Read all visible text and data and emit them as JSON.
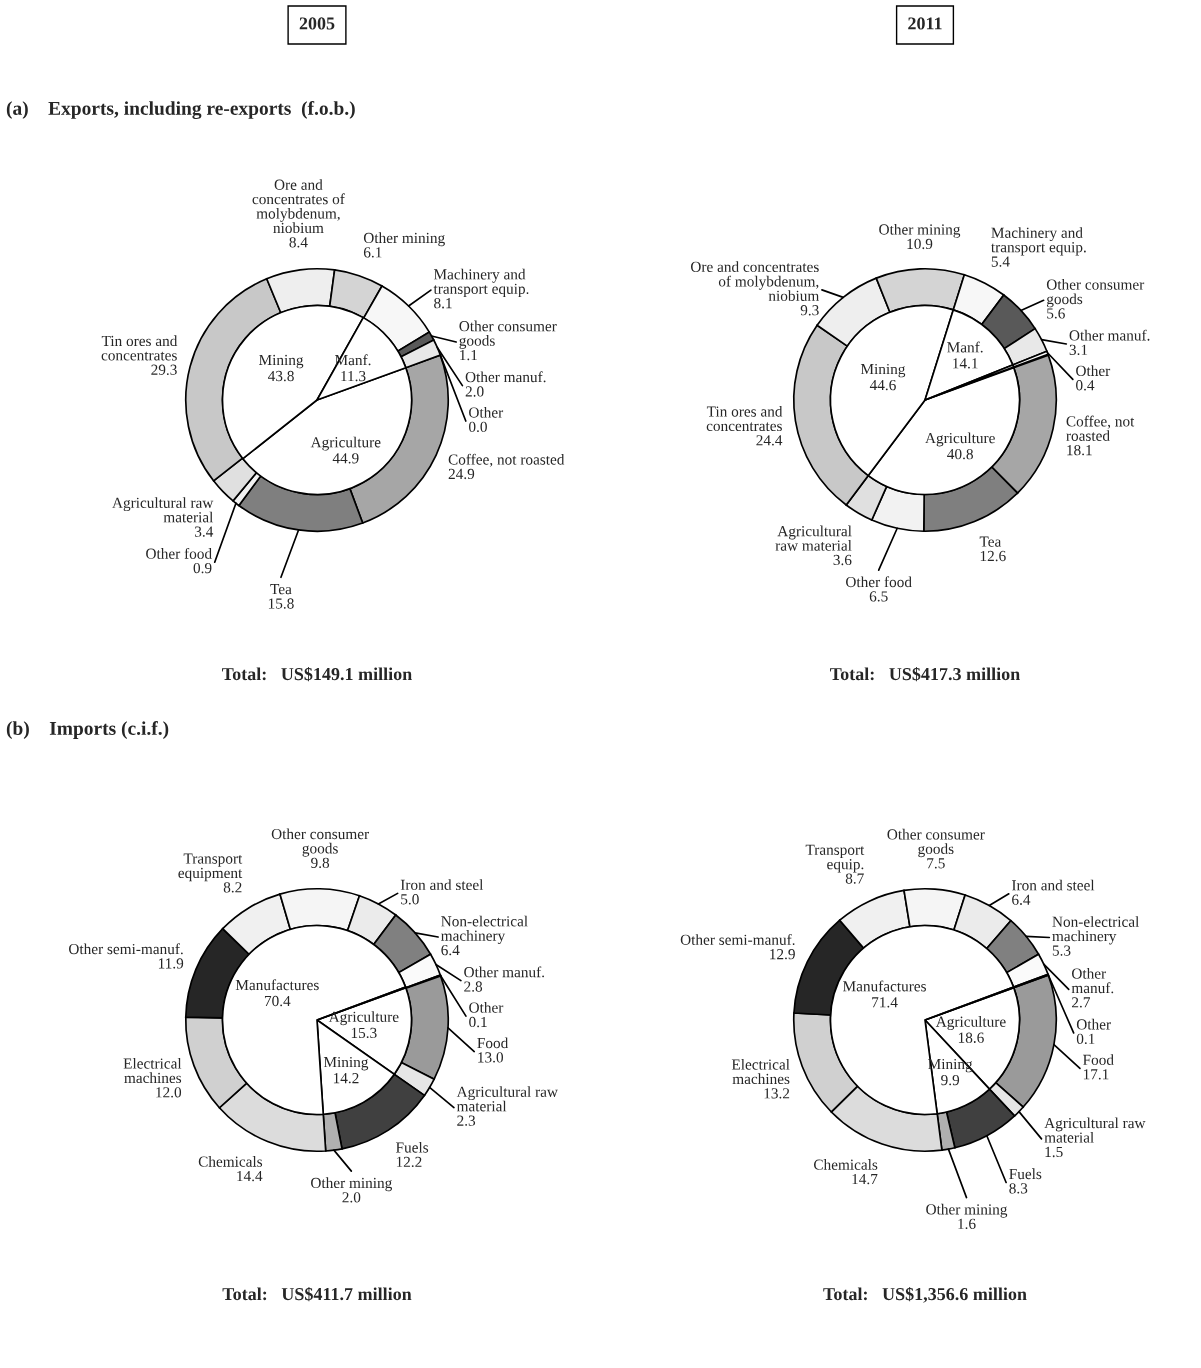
{
  "chart_data": [
    {
      "type": "donut",
      "title": "2005",
      "subtitle": "(a)    Exports, including re-exports  (f.o.b.)",
      "annotations": [
        "Total:   US$149.1 million"
      ],
      "categories": [
        "Coffee, not roasted",
        "Tea",
        "Other food",
        "Agricultural raw\nmaterial",
        "Tin ores and\nconcentrates",
        "Ore and\nconcentrates of\nmolybdenum,\nniobium",
        "Other mining",
        "Machinery and\ntransport equip.",
        "Other consumer\ngoods",
        "Other manuf.",
        "Other"
      ],
      "series": [
        {
          "values": [
            24.9,
            15.8,
            0.9,
            3.4,
            29.3,
            8.4,
            6.1,
            8.1,
            1.1,
            2.0,
            0.0
          ],
          "colors": [
            "#a6a6a6",
            "#7f7f7f",
            "#f2f2f2",
            "#e0e0e0",
            "#c8c8c8",
            "#eeeeee",
            "#d4d4d4",
            "#f7f7f7",
            "#595959",
            "#e8e8e8",
            "#ffffff"
          ],
          "value_labels": [
            "24.9",
            "15.8",
            "0.9",
            "3.4",
            "29.3",
            "8.4",
            "6.1",
            "8.1",
            "1.1",
            "2.0",
            "0.0"
          ]
        },
        {
          "values": [
            44.9,
            null,
            null,
            null,
            43.8,
            null,
            null,
            11.3,
            null,
            null,
            0.0
          ],
          "colors": [
            "#ffffff",
            "#ffffff",
            "#ffffff",
            "#ffffff",
            "#ffffff",
            "#ffffff",
            "#ffffff",
            "#ffffff",
            "#ffffff",
            "#ffffff",
            "#ffffff"
          ],
          "value_labels": [
            "Agriculture\n44.9",
            null,
            null,
            null,
            "Mining\n43.8",
            null,
            null,
            "Manf.\n11.3",
            null,
            null,
            null
          ]
        }
      ]
    },
    {
      "type": "donut",
      "title": "2011",
      "annotations": [
        "Total:   US$417.3 million"
      ],
      "categories": [
        "Coffee, not\nroasted",
        "Tea",
        "Other food",
        "Agricultural\nraw material",
        "Tin ores and\nconcentrates",
        "Ore and concentrates\nof molybdenum,\nniobium",
        "Other mining",
        "Machinery and\ntransport equip.",
        "Other consumer\ngoods",
        "Other manuf.",
        "Other"
      ],
      "series": [
        {
          "values": [
            18.1,
            12.6,
            6.5,
            3.6,
            24.4,
            9.3,
            10.9,
            5.4,
            5.6,
            3.1,
            0.4
          ],
          "colors": [
            "#a6a6a6",
            "#7f7f7f",
            "#f2f2f2",
            "#e0e0e0",
            "#c8c8c8",
            "#eeeeee",
            "#d4d4d4",
            "#f7f7f7",
            "#595959",
            "#e8e8e8",
            "#ffffff"
          ],
          "value_labels": [
            "18.1",
            "12.6",
            "6.5",
            "3.6",
            "24.4",
            "9.3",
            "10.9",
            "5.4",
            "5.6",
            "3.1",
            "0.4"
          ]
        },
        {
          "values": [
            40.8,
            null,
            null,
            null,
            44.6,
            null,
            null,
            14.1,
            null,
            null,
            0.4
          ],
          "colors": [
            "#ffffff",
            "#ffffff",
            "#ffffff",
            "#ffffff",
            "#ffffff",
            "#ffffff",
            "#ffffff",
            "#ffffff",
            "#ffffff",
            "#ffffff",
            "#ffffff"
          ],
          "value_labels": [
            "Agriculture\n40.8",
            null,
            null,
            null,
            "Mining\n44.6",
            null,
            null,
            "Manf.\n14.1",
            null,
            null,
            null
          ]
        }
      ]
    },
    {
      "type": "donut",
      "subtitle": "(b)    Imports (c.i.f.)",
      "annotations": [
        "Total:   US$411.7 million"
      ],
      "categories": [
        "Food",
        "Agricultural raw\nmaterial",
        "Fuels",
        "Other mining",
        "Chemicals",
        "Electrical\nmachines",
        "Other semi-manuf.",
        "Transport\nequipment",
        "Other consumer\ngoods",
        "Iron and steel",
        "Non-electrical\nmachinery",
        "Other manuf.",
        "Other"
      ],
      "series": [
        {
          "values": [
            13.0,
            2.3,
            12.2,
            2.0,
            14.4,
            12.0,
            11.9,
            8.2,
            9.8,
            5.0,
            6.4,
            2.8,
            0.1
          ],
          "colors": [
            "#9a9a9a",
            "#e6e6e6",
            "#404040",
            "#b0b0b0",
            "#dcdcdc",
            "#d0d0d0",
            "#262626",
            "#f0f0f0",
            "#f5f5f5",
            "#ebebeb",
            "#808080",
            "#fafafa",
            "#ffffff"
          ],
          "value_labels": [
            "13.0",
            "2.3",
            "12.2",
            "2.0",
            "14.4",
            "12.0",
            "11.9",
            "8.2",
            "9.8",
            "5.0",
            "6.4",
            "2.8",
            "0.1"
          ]
        },
        {
          "values": [
            15.3,
            null,
            14.2,
            null,
            70.4,
            null,
            null,
            null,
            null,
            null,
            null,
            null,
            0.1
          ],
          "colors": [
            "#ffffff",
            "#ffffff",
            "#ffffff",
            "#ffffff",
            "#ffffff",
            "#ffffff",
            "#ffffff",
            "#ffffff",
            "#ffffff",
            "#ffffff",
            "#ffffff",
            "#ffffff",
            "#ffffff"
          ],
          "value_labels": [
            "Agriculture\n15.3",
            null,
            "Mining\n14.2",
            null,
            "Manufactures\n70.4",
            null,
            null,
            null,
            null,
            null,
            null,
            null,
            null
          ]
        }
      ]
    },
    {
      "type": "donut",
      "annotations": [
        "Total:   US$1,356.6 million"
      ],
      "categories": [
        "Food",
        "Agricultural raw\nmaterial",
        "Fuels",
        "Other mining",
        "Chemicals",
        "Electrical\nmachines",
        "Other semi-manuf.",
        "Transport\nequip.",
        "Other consumer\ngoods",
        "Iron and steel",
        "Non-electrical\nmachinery",
        "Other\nmanuf.",
        "Other"
      ],
      "series": [
        {
          "values": [
            17.1,
            1.5,
            8.3,
            1.6,
            14.7,
            13.2,
            12.9,
            8.7,
            7.5,
            6.4,
            5.3,
            2.7,
            0.1
          ],
          "colors": [
            "#9a9a9a",
            "#e6e6e6",
            "#404040",
            "#b0b0b0",
            "#dcdcdc",
            "#d0d0d0",
            "#262626",
            "#f0f0f0",
            "#f5f5f5",
            "#ebebeb",
            "#808080",
            "#fafafa",
            "#ffffff"
          ],
          "value_labels": [
            "17.1",
            "1.5",
            "8.3",
            "1.6",
            "14.7",
            "13.2",
            "12.9",
            "8.7",
            "7.5",
            "6.4",
            "5.3",
            "2.7",
            "0.1"
          ]
        },
        {
          "values": [
            18.6,
            null,
            9.9,
            null,
            71.4,
            null,
            null,
            null,
            null,
            null,
            null,
            null,
            0.1
          ],
          "colors": [
            "#ffffff",
            "#ffffff",
            "#ffffff",
            "#ffffff",
            "#ffffff",
            "#ffffff",
            "#ffffff",
            "#ffffff",
            "#ffffff",
            "#ffffff",
            "#ffffff",
            "#ffffff",
            "#ffffff"
          ],
          "value_labels": [
            "Agriculture\n18.6",
            null,
            "Mining\n9.9",
            null,
            "Manufactures\n71.4",
            null,
            null,
            null,
            null,
            null,
            null,
            null,
            null
          ]
        }
      ]
    }
  ]
}
